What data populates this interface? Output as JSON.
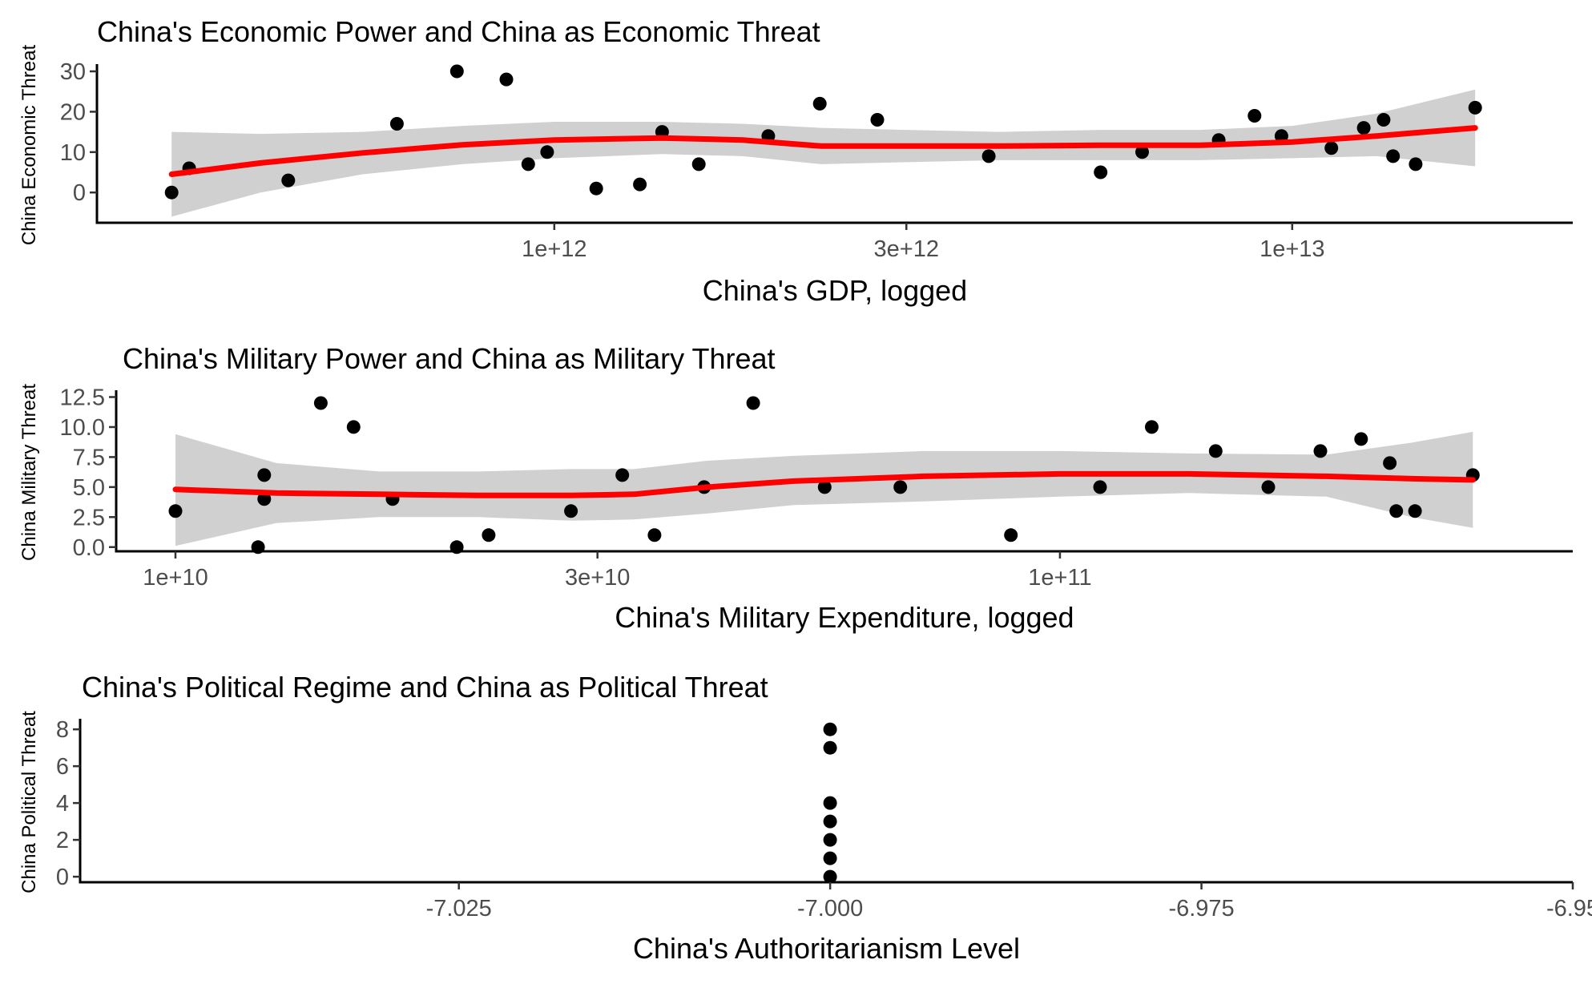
{
  "chart_data": [
    {
      "type": "scatter",
      "title": "China's Economic Power and China as Economic Threat",
      "xlabel": "China's GDP, logged",
      "ylabel": "China Economic Threat",
      "x_scale": "log10",
      "x_ticks": [
        1000000000000,
        3000000000000,
        10000000000000
      ],
      "x_tick_labels": [
        "1e+12",
        "3e+12",
        "1e+13"
      ],
      "xlim": [
        240000000000,
        24000000000000
      ],
      "y_ticks": [
        0,
        10,
        20,
        30
      ],
      "y_tick_labels": [
        "0",
        "10",
        "20",
        "30"
      ],
      "ylim": [
        -7.5,
        31
      ],
      "grid": false,
      "points": [
        {
          "x": 303000000000,
          "y": 0
        },
        {
          "x": 320000000000,
          "y": 6
        },
        {
          "x": 436000000000,
          "y": 3
        },
        {
          "x": 612000000000,
          "y": 17
        },
        {
          "x": 738000000000,
          "y": 30
        },
        {
          "x": 861000000000,
          "y": 28
        },
        {
          "x": 922000000000,
          "y": 7
        },
        {
          "x": 978000000000,
          "y": 10
        },
        {
          "x": 1140000000000,
          "y": 1
        },
        {
          "x": 1306000000000,
          "y": 2
        },
        {
          "x": 1400000000000,
          "y": 15
        },
        {
          "x": 1570000000000,
          "y": 7
        },
        {
          "x": 1950000000000,
          "y": 14
        },
        {
          "x": 2290000000000,
          "y": 22
        },
        {
          "x": 2740000000000,
          "y": 18
        },
        {
          "x": 3880000000000,
          "y": 9
        },
        {
          "x": 5500000000000,
          "y": 5
        },
        {
          "x": 6260000000000,
          "y": 10
        },
        {
          "x": 7950000000000,
          "y": 13
        },
        {
          "x": 8890000000000,
          "y": 19
        },
        {
          "x": 9670000000000,
          "y": 14
        },
        {
          "x": 11300000000000,
          "y": 11
        },
        {
          "x": 12500000000000,
          "y": 16
        },
        {
          "x": 13300000000000,
          "y": 18
        },
        {
          "x": 13700000000000,
          "y": 9
        },
        {
          "x": 14700000000000,
          "y": 7
        },
        {
          "x": 17700000000000,
          "y": 21
        }
      ],
      "smooth": [
        {
          "x": 303000000000,
          "y": 4.5,
          "lo": -6,
          "hi": 15
        },
        {
          "x": 400000000000,
          "y": 7.3,
          "lo": 0,
          "hi": 14.5
        },
        {
          "x": 550000000000,
          "y": 9.8,
          "lo": 4.5,
          "hi": 15
        },
        {
          "x": 750000000000,
          "y": 11.8,
          "lo": 7,
          "hi": 16.5
        },
        {
          "x": 1000000000000,
          "y": 13,
          "lo": 8.5,
          "hi": 17.5
        },
        {
          "x": 1400000000000,
          "y": 13.5,
          "lo": 9.5,
          "hi": 17.5
        },
        {
          "x": 1800000000000,
          "y": 13,
          "lo": 9,
          "hi": 17
        },
        {
          "x": 2300000000000,
          "y": 11.5,
          "lo": 7,
          "hi": 16
        },
        {
          "x": 3000000000000,
          "y": 11.5,
          "lo": 7.5,
          "hi": 15.5
        },
        {
          "x": 4000000000000,
          "y": 11.5,
          "lo": 8,
          "hi": 15
        },
        {
          "x": 5500000000000,
          "y": 11.7,
          "lo": 8,
          "hi": 15.5
        },
        {
          "x": 7500000000000,
          "y": 11.7,
          "lo": 8,
          "hi": 15.5
        },
        {
          "x": 10000000000000,
          "y": 12.5,
          "lo": 8.5,
          "hi": 16.5
        },
        {
          "x": 13000000000000,
          "y": 14,
          "lo": 9,
          "hi": 19.5
        },
        {
          "x": 17700000000000,
          "y": 16,
          "lo": 6.5,
          "hi": 25.5
        }
      ]
    },
    {
      "type": "scatter",
      "title": "China's Military Power and China as Military Threat",
      "xlabel": "China's Military Expenditure, logged",
      "ylabel": "China Military Threat",
      "x_scale": "log10",
      "x_ticks": [
        10000000000,
        30000000000,
        100000000000
      ],
      "x_tick_labels": [
        "1e+10",
        "3e+10",
        "1e+11"
      ],
      "xlim": [
        8570000000,
        380000000000
      ],
      "y_ticks": [
        0,
        2.5,
        5,
        7.5,
        10,
        12.5
      ],
      "y_tick_labels": [
        "0.0",
        "2.5",
        "5.0",
        "7.5",
        "10.0",
        "12.5"
      ],
      "ylim": [
        -0.35,
        12.8
      ],
      "grid": false,
      "points": [
        {
          "x": 10000000000,
          "y": 3
        },
        {
          "x": 12400000000,
          "y": 0
        },
        {
          "x": 12600000000,
          "y": 6
        },
        {
          "x": 12600000000,
          "y": 4
        },
        {
          "x": 14600000000,
          "y": 12
        },
        {
          "x": 15900000000,
          "y": 10
        },
        {
          "x": 17600000000,
          "y": 4
        },
        {
          "x": 20800000000,
          "y": 0
        },
        {
          "x": 22600000000,
          "y": 1
        },
        {
          "x": 28000000000,
          "y": 3
        },
        {
          "x": 32000000000,
          "y": 6
        },
        {
          "x": 34800000000,
          "y": 1
        },
        {
          "x": 39600000000,
          "y": 5
        },
        {
          "x": 45000000000,
          "y": 12
        },
        {
          "x": 54200000000,
          "y": 5
        },
        {
          "x": 66000000000,
          "y": 5
        },
        {
          "x": 88000000000,
          "y": 1
        },
        {
          "x": 111000000000,
          "y": 5
        },
        {
          "x": 127000000000,
          "y": 10
        },
        {
          "x": 150000000000,
          "y": 8
        },
        {
          "x": 172000000000,
          "y": 5
        },
        {
          "x": 197000000000,
          "y": 8
        },
        {
          "x": 219000000000,
          "y": 9
        },
        {
          "x": 236000000000,
          "y": 7
        },
        {
          "x": 240000000000,
          "y": 3
        },
        {
          "x": 252000000000,
          "y": 3
        },
        {
          "x": 293000000000,
          "y": 6
        }
      ],
      "smooth": [
        {
          "x": 10000000000,
          "y": 4.8,
          "lo": 0.1,
          "hi": 9.4
        },
        {
          "x": 13000000000,
          "y": 4.5,
          "lo": 2,
          "hi": 7
        },
        {
          "x": 17000000000,
          "y": 4.4,
          "lo": 2.5,
          "hi": 6.3
        },
        {
          "x": 22000000000,
          "y": 4.3,
          "lo": 2.5,
          "hi": 6.3
        },
        {
          "x": 28000000000,
          "y": 4.3,
          "lo": 2.2,
          "hi": 6.5
        },
        {
          "x": 33000000000,
          "y": 4.4,
          "lo": 2.3,
          "hi": 6.5
        },
        {
          "x": 40000000000,
          "y": 5,
          "lo": 2.8,
          "hi": 7.2
        },
        {
          "x": 50000000000,
          "y": 5.5,
          "lo": 3.5,
          "hi": 7.6
        },
        {
          "x": 70000000000,
          "y": 5.9,
          "lo": 3.8,
          "hi": 8
        },
        {
          "x": 100000000000,
          "y": 6.1,
          "lo": 4.2,
          "hi": 8
        },
        {
          "x": 140000000000,
          "y": 6.1,
          "lo": 4.5,
          "hi": 7.8
        },
        {
          "x": 200000000000,
          "y": 5.9,
          "lo": 4.2,
          "hi": 7.7
        },
        {
          "x": 250000000000,
          "y": 5.7,
          "lo": 2.5,
          "hi": 8.7
        },
        {
          "x": 293000000000,
          "y": 5.6,
          "lo": 1.6,
          "hi": 9.6
        }
      ]
    },
    {
      "type": "scatter",
      "title": "China's Political Regime and China as Political Threat",
      "xlabel": "China's Authoritarianism Level",
      "ylabel": "China Political Threat",
      "x_scale": "linear",
      "x_ticks": [
        -7.025,
        -7.0,
        -6.975,
        -6.95
      ],
      "x_tick_labels": [
        "-7.025",
        "-7.000",
        "-6.975",
        "-6.95"
      ],
      "xlim": [
        -7.0505,
        -6.95
      ],
      "y_ticks": [
        0,
        2,
        4,
        6,
        8
      ],
      "y_tick_labels": [
        "0",
        "2",
        "4",
        "6",
        "8"
      ],
      "ylim": [
        -0.3,
        8.4
      ],
      "grid": false,
      "points": [
        {
          "x": -7,
          "y": 8
        },
        {
          "x": -7,
          "y": 7
        },
        {
          "x": -7,
          "y": 4
        },
        {
          "x": -7,
          "y": 3
        },
        {
          "x": -7,
          "y": 2
        },
        {
          "x": -7,
          "y": 1
        },
        {
          "x": -7,
          "y": 0
        }
      ],
      "smooth": []
    }
  ]
}
